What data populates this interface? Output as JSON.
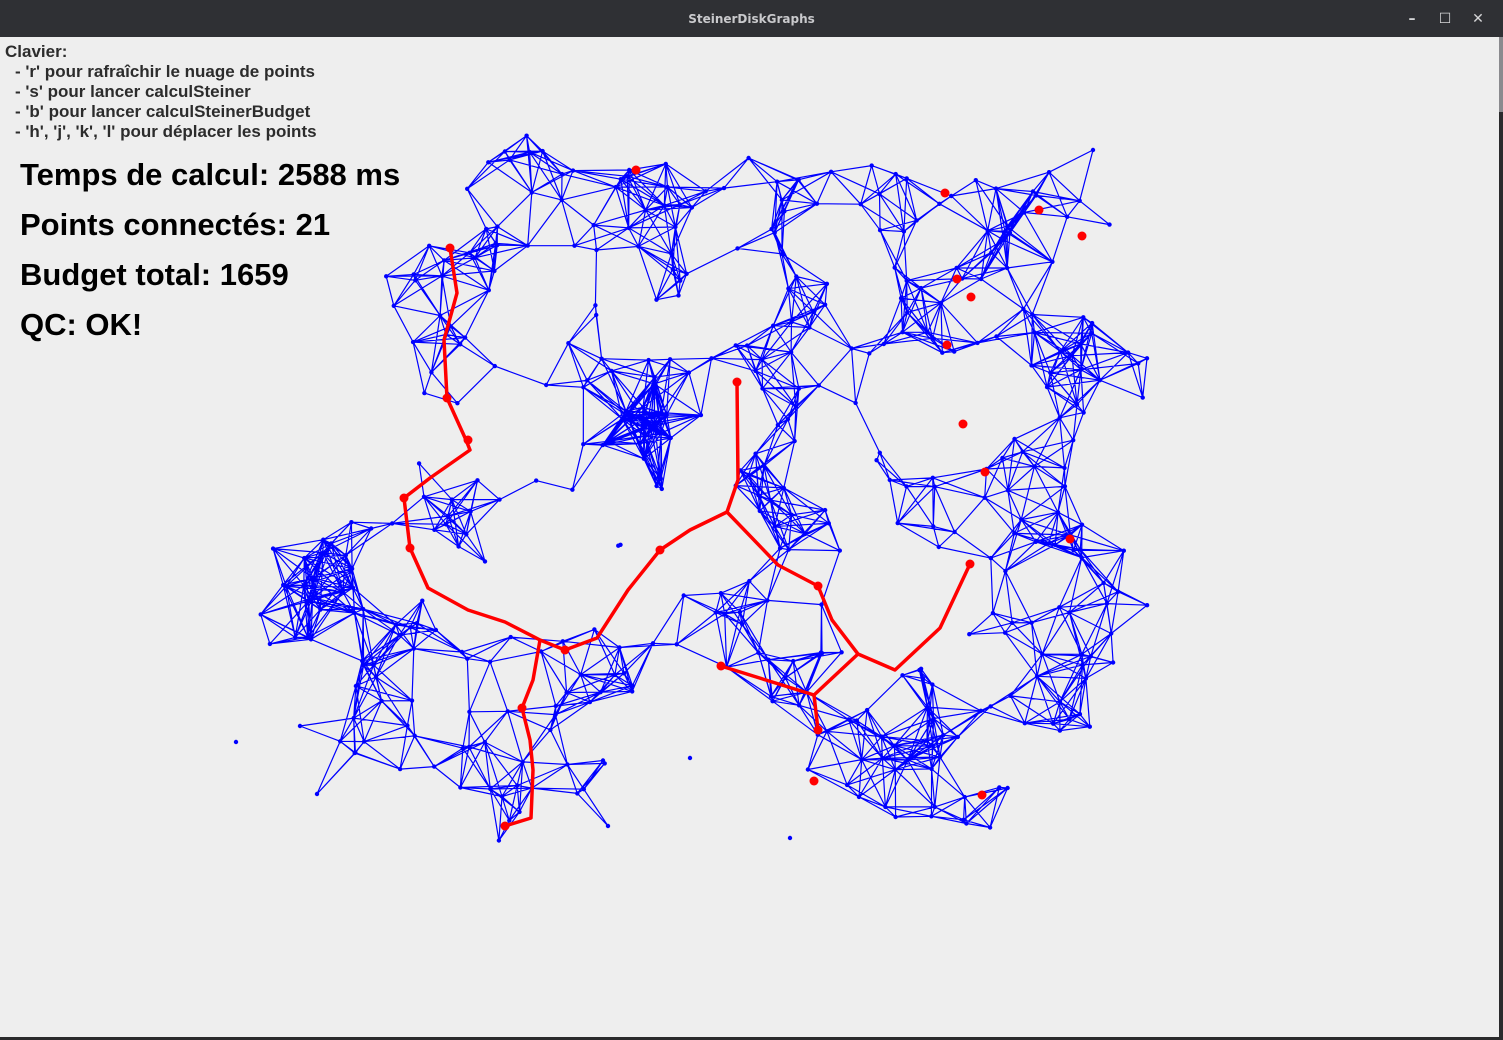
{
  "window": {
    "title": "SteinerDiskGraphs",
    "controls": {
      "minimize": "–",
      "maximize": "☐",
      "close": "✕"
    }
  },
  "help": {
    "heading": "Clavier:",
    "lines": [
      "- 'r' pour rafraîchir le nuage de points",
      "- 's' pour lancer calculSteiner",
      "- 'b' pour lancer calculSteinerBudget",
      "- 'h', 'j', 'k', 'l' pour déplacer les points"
    ]
  },
  "stats": {
    "time": "Temps de calcul: 2588 ms",
    "connected": "Points connectés: 21",
    "budget": "Budget total: 1659",
    "qc": "QC: OK!"
  },
  "colors": {
    "edges": "#0000ff",
    "steiner_tree": "#ff0000",
    "background": "#eeeeee",
    "titlebar": "#2f3034"
  }
}
